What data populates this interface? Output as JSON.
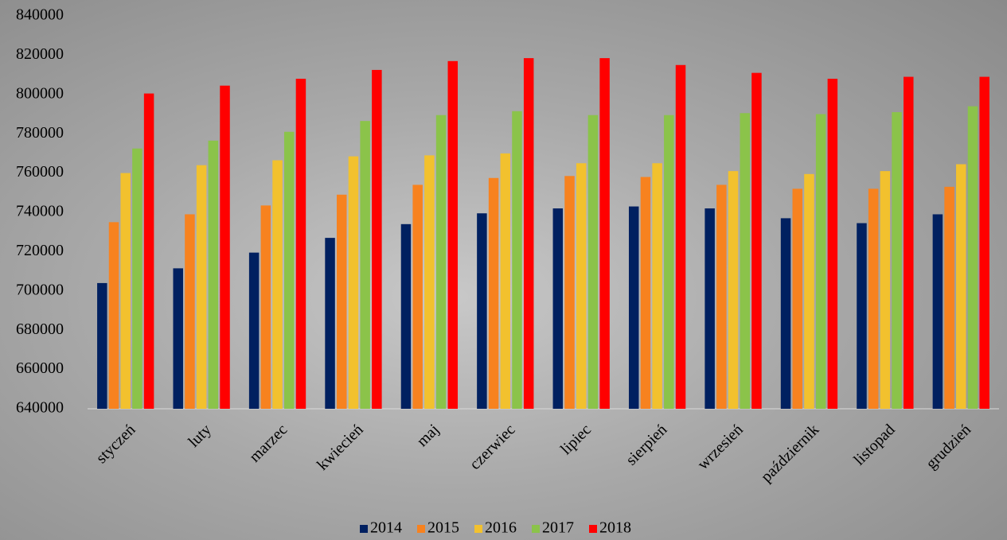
{
  "chart_data": {
    "type": "bar",
    "categories": [
      "styczeń",
      "luty",
      "marzec",
      "kwiecień",
      "maj",
      "czerwiec",
      "lipiec",
      "sierpień",
      "wrzesień",
      "październik",
      "listopad",
      "grudzień"
    ],
    "series": [
      {
        "name": "2014",
        "color": "#002060",
        "values": [
          704000,
          711500,
          719500,
          727000,
          734000,
          739500,
          742000,
          743000,
          742000,
          737000,
          734500,
          739000
        ]
      },
      {
        "name": "2015",
        "color": "#f7821f",
        "values": [
          735000,
          739000,
          743500,
          749000,
          754000,
          757500,
          758500,
          758000,
          754000,
          752000,
          752000,
          753000
        ]
      },
      {
        "name": "2016",
        "color": "#f2c12e",
        "values": [
          760000,
          764000,
          766500,
          768500,
          769000,
          770000,
          765000,
          765000,
          761000,
          759500,
          761000,
          764500
        ]
      },
      {
        "name": "2017",
        "color": "#8bc34a",
        "values": [
          772500,
          776500,
          781000,
          786500,
          789500,
          791500,
          789500,
          789500,
          790500,
          790000,
          791000,
          794000
        ]
      },
      {
        "name": "2018",
        "color": "#ff0000",
        "values": [
          800500,
          804500,
          808000,
          812500,
          817000,
          818500,
          818500,
          815000,
          811000,
          808000,
          809000,
          809000
        ]
      }
    ],
    "ylim": [
      640000,
      840000
    ],
    "yticks": [
      640000,
      660000,
      680000,
      700000,
      720000,
      740000,
      760000,
      780000,
      800000,
      820000,
      840000
    ],
    "grid": false,
    "legend": "bottom"
  }
}
